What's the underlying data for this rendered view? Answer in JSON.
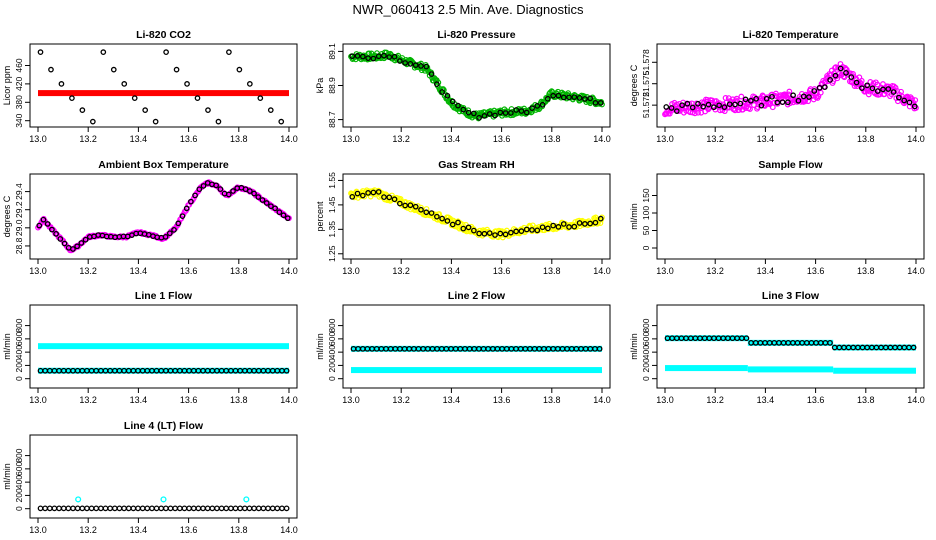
{
  "figure_title": "NWR_060413  2.5 Min. Ave. Diagnostics",
  "colors": {
    "black": "#000000",
    "red": "#ff0000",
    "green": "#00b400",
    "magenta": "#ff00ff",
    "yellow": "#ffff00",
    "cyan": "#00ffff"
  },
  "chart_data": [
    {
      "id": "co2",
      "type": "scatter",
      "title": "Li-820 CO2",
      "ylabel": "Licor ppm",
      "xlim": [
        13.0,
        14.0
      ],
      "ylim": [
        335,
        498
      ],
      "xticks": [
        "13.0",
        "13.2",
        "13.4",
        "13.6",
        "13.8",
        "14.0"
      ],
      "xtick_values": [
        13.0,
        13.2,
        13.4,
        13.6,
        13.8,
        14.0
      ],
      "yticks": [
        "340",
        "380",
        "420",
        "460"
      ],
      "ytick_values": [
        340,
        380,
        420,
        460
      ],
      "series": [
        {
          "name": "ambient",
          "color": "red",
          "style": "band",
          "x": [
            13.0,
            14.0
          ],
          "y": [
            400,
            400
          ]
        },
        {
          "name": "standards",
          "color": "black",
          "style": "open",
          "levels": [
            489,
            451,
            420,
            389,
            363,
            338
          ],
          "x_start": 13.01,
          "x_step": 0.0417
        }
      ]
    },
    {
      "id": "pressure",
      "type": "scatter",
      "title": "Li-820 Pressure",
      "ylabel": "kPa",
      "xlim": [
        13.0,
        14.0
      ],
      "ylim": [
        88.68,
        89.12
      ],
      "xticks": [
        "13.0",
        "13.2",
        "13.4",
        "13.6",
        "13.8",
        "14.0"
      ],
      "xtick_values": [
        13.0,
        13.2,
        13.4,
        13.6,
        13.8,
        14.0
      ],
      "yticks": [
        "88.7",
        "88.9",
        "89.1"
      ],
      "ytick_values": [
        88.7,
        88.9,
        89.1
      ],
      "series": [
        {
          "name": "pressure",
          "color": "green",
          "style": "cloud",
          "x": [
            13.0,
            13.1,
            13.15,
            13.2,
            13.3,
            13.4,
            13.45,
            13.5,
            13.6,
            13.7,
            13.75,
            13.8,
            13.9,
            14.0
          ],
          "y": [
            89.07,
            89.07,
            89.08,
            89.05,
            89.0,
            88.8,
            88.75,
            88.72,
            88.74,
            88.75,
            88.78,
            88.85,
            88.83,
            88.8
          ]
        }
      ]
    },
    {
      "id": "temperature",
      "type": "scatter",
      "title": "Li-820 Temperature",
      "ylabel": "degrees C",
      "xlim": [
        13.0,
        14.0
      ],
      "ylim": [
        51.5695,
        51.58
      ],
      "xticks": [
        "13.0",
        "13.2",
        "13.4",
        "13.6",
        "13.8",
        "14.0"
      ],
      "xtick_values": [
        13.0,
        13.2,
        13.4,
        13.6,
        13.8,
        14.0
      ],
      "yticks": [
        "51.572",
        "51.575",
        "51.578"
      ],
      "ytick_values": [
        51.572,
        51.575,
        51.578
      ],
      "series": [
        {
          "name": "temperature",
          "color": "magenta",
          "style": "scatter_open",
          "x": [
            13.0,
            13.2,
            13.4,
            13.6,
            13.65,
            13.7,
            13.8,
            13.9,
            14.0
          ],
          "y": [
            51.5715,
            51.572,
            51.5725,
            51.5735,
            51.5755,
            51.577,
            51.5745,
            51.574,
            51.572
          ]
        }
      ]
    },
    {
      "id": "ambient-box",
      "type": "scatter",
      "title": "Ambient Box Temperature",
      "ylabel": "degrees C",
      "xlim": [
        13.0,
        14.0
      ],
      "ylim": [
        28.7,
        29.55
      ],
      "xticks": [
        "13.0",
        "13.2",
        "13.4",
        "13.6",
        "13.8",
        "14.0"
      ],
      "xtick_values": [
        13.0,
        13.2,
        13.4,
        13.6,
        13.8,
        14.0
      ],
      "yticks": [
        "28.8",
        "29.0",
        "29.2",
        "29.4"
      ],
      "ytick_values": [
        28.8,
        29.0,
        29.2,
        29.4
      ],
      "series": [
        {
          "name": "box temp",
          "color": "magenta",
          "style": "line_points",
          "x": [
            13.0,
            13.02,
            13.05,
            13.1,
            13.13,
            13.16,
            13.2,
            13.25,
            13.3,
            13.35,
            13.4,
            13.45,
            13.5,
            13.55,
            13.6,
            13.65,
            13.68,
            13.72,
            13.75,
            13.8,
            13.85,
            13.9,
            13.95,
            14.0
          ],
          "y": [
            29.0,
            29.1,
            29.0,
            28.85,
            28.75,
            28.8,
            28.9,
            28.92,
            28.9,
            28.9,
            28.95,
            28.92,
            28.88,
            29.0,
            29.25,
            29.45,
            29.5,
            29.45,
            29.35,
            29.45,
            29.4,
            29.3,
            29.2,
            29.1
          ]
        }
      ]
    },
    {
      "id": "rh",
      "type": "scatter",
      "title": "Gas Stream RH",
      "ylabel": "percent",
      "xlim": [
        13.0,
        14.0
      ],
      "ylim": [
        1.245,
        1.56
      ],
      "xticks": [
        "13.0",
        "13.2",
        "13.4",
        "13.6",
        "13.8",
        "14.0"
      ],
      "xtick_values": [
        13.0,
        13.2,
        13.4,
        13.6,
        13.8,
        14.0
      ],
      "yticks": [
        "1.25",
        "1.35",
        "1.45",
        "1.55"
      ],
      "ytick_values": [
        1.25,
        1.35,
        1.45,
        1.55
      ],
      "series": [
        {
          "name": "rh",
          "color": "yellow",
          "style": "cloud",
          "x": [
            13.0,
            13.1,
            13.2,
            13.3,
            13.4,
            13.5,
            13.6,
            13.7,
            13.8,
            13.9,
            14.0
          ],
          "y": [
            1.49,
            1.5,
            1.46,
            1.42,
            1.38,
            1.34,
            1.33,
            1.35,
            1.36,
            1.37,
            1.39
          ]
        }
      ]
    },
    {
      "id": "sample-flow",
      "type": "scatter",
      "title": "Sample Flow",
      "ylabel": "ml/min",
      "xlim": [
        13.0,
        14.0
      ],
      "ylim": [
        -20,
        200
      ],
      "xticks": [
        "13.0",
        "13.2",
        "13.4",
        "13.6",
        "13.8",
        "14.0"
      ],
      "xtick_values": [
        13.0,
        13.2,
        13.4,
        13.6,
        13.8,
        14.0
      ],
      "yticks": [
        "0",
        "50",
        "100",
        "150"
      ],
      "ytick_values": [
        0,
        50,
        100,
        150
      ],
      "series": []
    },
    {
      "id": "line1",
      "type": "scatter",
      "title": "Line 1 Flow",
      "ylabel": "ml/min",
      "xlim": [
        13.0,
        14.0
      ],
      "ylim": [
        -80,
        1050
      ],
      "xticks": [
        "13.0",
        "13.2",
        "13.4",
        "13.6",
        "13.8",
        "14.0"
      ],
      "xtick_values": [
        13.0,
        13.2,
        13.4,
        13.6,
        13.8,
        14.0
      ],
      "yticks": [
        "0",
        "200",
        "400",
        "600",
        "800"
      ],
      "ytick_values": [
        0,
        200,
        400,
        600,
        800
      ],
      "series": [
        {
          "name": "high",
          "color": "cyan",
          "style": "band",
          "x": [
            13.0,
            14.0
          ],
          "y": [
            490,
            490
          ]
        },
        {
          "name": "low",
          "color": "cyan",
          "style": "band",
          "x": [
            13.0,
            14.0
          ],
          "y": [
            120,
            120
          ]
        },
        {
          "name": "line 1",
          "color": "black",
          "style": "open",
          "levels": [
            120
          ],
          "x_start": 13.01,
          "x_step": 0.0185
        }
      ]
    },
    {
      "id": "line2",
      "type": "scatter",
      "title": "Line 2 Flow",
      "ylabel": "ml/min",
      "xlim": [
        13.0,
        14.0
      ],
      "ylim": [
        -80,
        1050
      ],
      "xticks": [
        "13.0",
        "13.2",
        "13.4",
        "13.6",
        "13.8",
        "14.0"
      ],
      "xtick_values": [
        13.0,
        13.2,
        13.4,
        13.6,
        13.8,
        14.0
      ],
      "yticks": [
        "0",
        "200",
        "400",
        "600",
        "800"
      ],
      "ytick_values": [
        0,
        200,
        400,
        600,
        800
      ],
      "series": [
        {
          "name": "high",
          "color": "cyan",
          "style": "band",
          "x": [
            13.0,
            14.0
          ],
          "y": [
            450,
            450
          ]
        },
        {
          "name": "low",
          "color": "cyan",
          "style": "band",
          "x": [
            13.0,
            14.0
          ],
          "y": [
            130,
            130
          ]
        },
        {
          "name": "line 2",
          "color": "black",
          "style": "open",
          "levels": [
            450
          ],
          "x_start": 13.01,
          "x_step": 0.0185
        }
      ]
    },
    {
      "id": "line3",
      "type": "scatter",
      "title": "Line 3 Flow",
      "ylabel": "ml/min",
      "xlim": [
        13.0,
        14.0
      ],
      "ylim": [
        -80,
        1050
      ],
      "xticks": [
        "13.0",
        "13.2",
        "13.4",
        "13.6",
        "13.8",
        "14.0"
      ],
      "xtick_values": [
        13.0,
        13.2,
        13.4,
        13.6,
        13.8,
        14.0
      ],
      "yticks": [
        "0",
        "200",
        "400",
        "600",
        "800"
      ],
      "ytick_values": [
        0,
        200,
        400,
        600,
        800
      ],
      "series": [
        {
          "name": "high",
          "color": "cyan",
          "style": "steps",
          "x": [
            13.0,
            13.33,
            13.33,
            13.67,
            13.67,
            14.0
          ],
          "y": [
            610,
            610,
            540,
            540,
            470,
            470
          ]
        },
        {
          "name": "low",
          "color": "cyan",
          "style": "steps",
          "x": [
            13.0,
            13.33,
            13.33,
            13.67,
            13.67,
            14.0
          ],
          "y": [
            160,
            160,
            140,
            140,
            120,
            120
          ]
        },
        {
          "name": "line 3",
          "color": "black",
          "style": "open_steps",
          "x_start": 13.01,
          "x_step": 0.0185,
          "breaks": [
            13.33,
            13.67
          ],
          "levels": [
            610,
            540,
            470
          ]
        }
      ]
    },
    {
      "id": "line4",
      "type": "scatter",
      "title": "Line 4 (LT) Flow",
      "ylabel": "ml/min",
      "xlim": [
        13.0,
        14.0
      ],
      "ylim": [
        -80,
        1050
      ],
      "xticks": [
        "13.0",
        "13.2",
        "13.4",
        "13.6",
        "13.8",
        "14.0"
      ],
      "xtick_values": [
        13.0,
        13.2,
        13.4,
        13.6,
        13.8,
        14.0
      ],
      "yticks": [
        "0",
        "200",
        "400",
        "600",
        "800"
      ],
      "ytick_values": [
        0,
        200,
        400,
        600,
        800
      ],
      "series": [
        {
          "name": "line 4",
          "color": "black",
          "style": "open",
          "levels": [
            5
          ],
          "x_start": 13.01,
          "x_step": 0.0185
        },
        {
          "name": "spikes",
          "color": "cyan",
          "style": "points",
          "x": [
            13.16,
            13.5,
            13.83
          ],
          "y": [
            140,
            140,
            140
          ]
        }
      ]
    }
  ]
}
